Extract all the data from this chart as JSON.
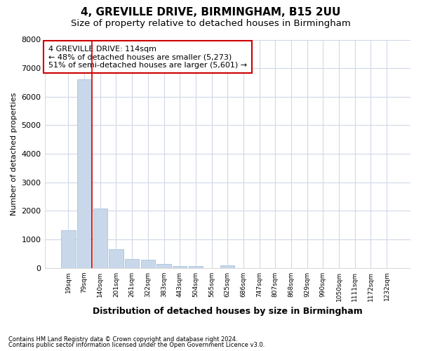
{
  "title1": "4, GREVILLE DRIVE, BIRMINGHAM, B15 2UU",
  "title2": "Size of property relative to detached houses in Birmingham",
  "xlabel": "Distribution of detached houses by size in Birmingham",
  "ylabel": "Number of detached properties",
  "footnote1": "Contains HM Land Registry data © Crown copyright and database right 2024.",
  "footnote2": "Contains public sector information licensed under the Open Government Licence v3.0.",
  "bin_labels": [
    "19sqm",
    "79sqm",
    "140sqm",
    "201sqm",
    "261sqm",
    "322sqm",
    "383sqm",
    "443sqm",
    "504sqm",
    "565sqm",
    "625sqm",
    "686sqm",
    "747sqm",
    "807sqm",
    "868sqm",
    "929sqm",
    "990sqm",
    "1050sqm",
    "1111sqm",
    "1172sqm",
    "1232sqm"
  ],
  "bar_values": [
    1310,
    6600,
    2090,
    650,
    300,
    280,
    130,
    75,
    75,
    0,
    80,
    0,
    0,
    0,
    0,
    0,
    0,
    0,
    0,
    0,
    0
  ],
  "bar_color": "#c8d8ea",
  "bar_edge_color": "#b0c8e0",
  "property_line_color": "#cc0000",
  "property_line_x": 1.5,
  "annotation_text": "4 GREVILLE DRIVE: 114sqm\n← 48% of detached houses are smaller (5,273)\n51% of semi-detached houses are larger (5,601) →",
  "annotation_box_edgecolor": "#cc0000",
  "ylim": [
    0,
    8000
  ],
  "yticks": [
    0,
    1000,
    2000,
    3000,
    4000,
    5000,
    6000,
    7000,
    8000
  ],
  "bg_color": "#ffffff",
  "plot_bg_color": "#ffffff",
  "grid_color": "#d0d8e8",
  "title1_fontsize": 11,
  "title2_fontsize": 9.5
}
